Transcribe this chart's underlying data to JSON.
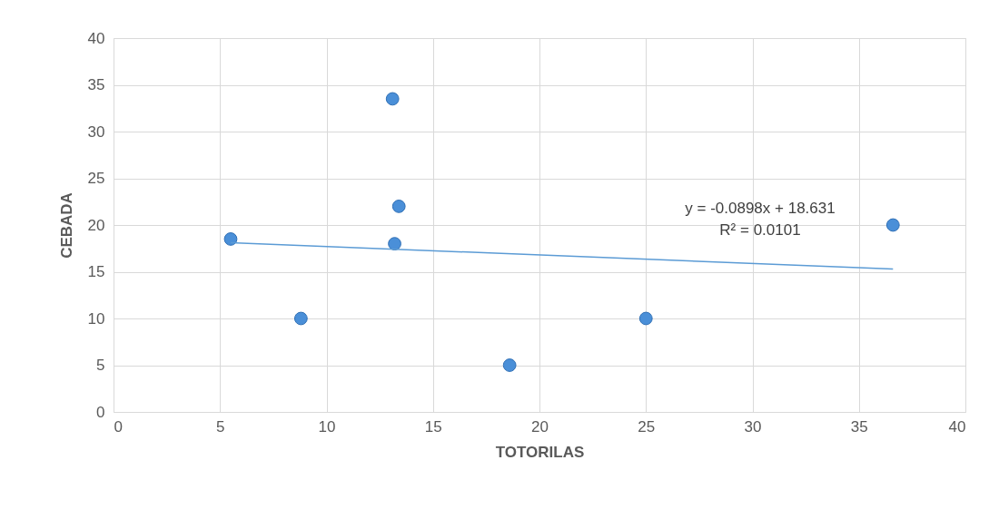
{
  "chart_data": {
    "type": "scatter",
    "xlabel": "TOTORILAS",
    "ylabel": "CEBADA",
    "xlim": [
      0,
      40
    ],
    "xticks": [
      0,
      5,
      10,
      15,
      20,
      25,
      30,
      35,
      40
    ],
    "ylim": [
      0,
      40
    ],
    "yticks": [
      0,
      5,
      10,
      15,
      20,
      25,
      30,
      35,
      40
    ],
    "grid": true,
    "series": [
      {
        "type": "scatter",
        "color": "#4a8fd8",
        "marker": "circle",
        "x": [
          5.5,
          8.8,
          13.1,
          13.4,
          13.2,
          18.6,
          25.0,
          36.6
        ],
        "values": [
          18.5,
          10,
          33.5,
          22,
          18,
          5,
          10,
          20
        ]
      },
      {
        "type": "line",
        "color": "#5b9bd5",
        "line_style": "solid",
        "marker": "none",
        "x": [
          5.5,
          36.6
        ],
        "values": [
          18.1,
          15.3
        ]
      }
    ],
    "annotations": [
      "y = -0.0898x + 18.631",
      "R² = 0.0101"
    ]
  }
}
